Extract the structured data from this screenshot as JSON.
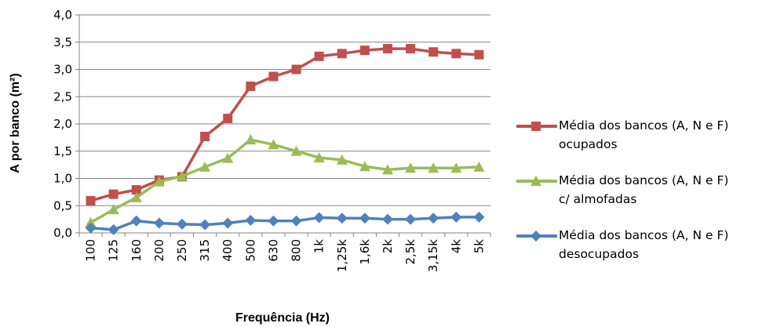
{
  "chart_data": {
    "type": "line",
    "xlabel": "Frequência (Hz)",
    "ylabel": "A por banco (m²)",
    "ylim": [
      0,
      4
    ],
    "yticks": [
      "0,0",
      "0,5",
      "1,0",
      "1,5",
      "2,0",
      "2,5",
      "3,0",
      "3,5",
      "4,0"
    ],
    "grid": true,
    "legend_position": "right",
    "categories": [
      "100",
      "125",
      "160",
      "200",
      "250",
      "315",
      "400",
      "500",
      "630",
      "800",
      "1k",
      "1,25k",
      "1,6k",
      "2k",
      "2,5k",
      "3,15k",
      "4k",
      "5k"
    ],
    "series": [
      {
        "name": "Média dos bancos (A, N e F) ocupados",
        "color": "#C0504D",
        "marker": "square",
        "values": [
          0.59,
          0.71,
          0.79,
          0.97,
          1.03,
          1.77,
          2.1,
          2.69,
          2.87,
          3.0,
          3.24,
          3.29,
          3.35,
          3.38,
          3.38,
          3.32,
          3.29,
          3.27
        ]
      },
      {
        "name": "Média dos bancos (A, N e F) c/ almofadas",
        "color": "#9BBB59",
        "marker": "triangle",
        "values": [
          0.19,
          0.43,
          0.65,
          0.94,
          1.04,
          1.21,
          1.37,
          1.71,
          1.62,
          1.5,
          1.38,
          1.34,
          1.22,
          1.16,
          1.19,
          1.19,
          1.19,
          1.21
        ]
      },
      {
        "name": "Média dos bancos (A, N e F) desocupados",
        "color": "#4F81BD",
        "marker": "diamond",
        "values": [
          0.09,
          0.06,
          0.22,
          0.18,
          0.16,
          0.15,
          0.18,
          0.23,
          0.22,
          0.22,
          0.28,
          0.27,
          0.27,
          0.25,
          0.25,
          0.27,
          0.29,
          0.29
        ]
      }
    ]
  },
  "legend": {
    "items": [
      {
        "line1": "Média dos bancos (A, N e F)",
        "line2": "ocupados",
        "color": "#C0504D",
        "marker": "square"
      },
      {
        "line1": "Média dos bancos (A, N e F)",
        "line2": "c/ almofadas",
        "color": "#9BBB59",
        "marker": "triangle"
      },
      {
        "line1": "Média dos bancos (A, N e F)",
        "line2": "desocupados",
        "color": "#4F81BD",
        "marker": "diamond"
      }
    ]
  }
}
